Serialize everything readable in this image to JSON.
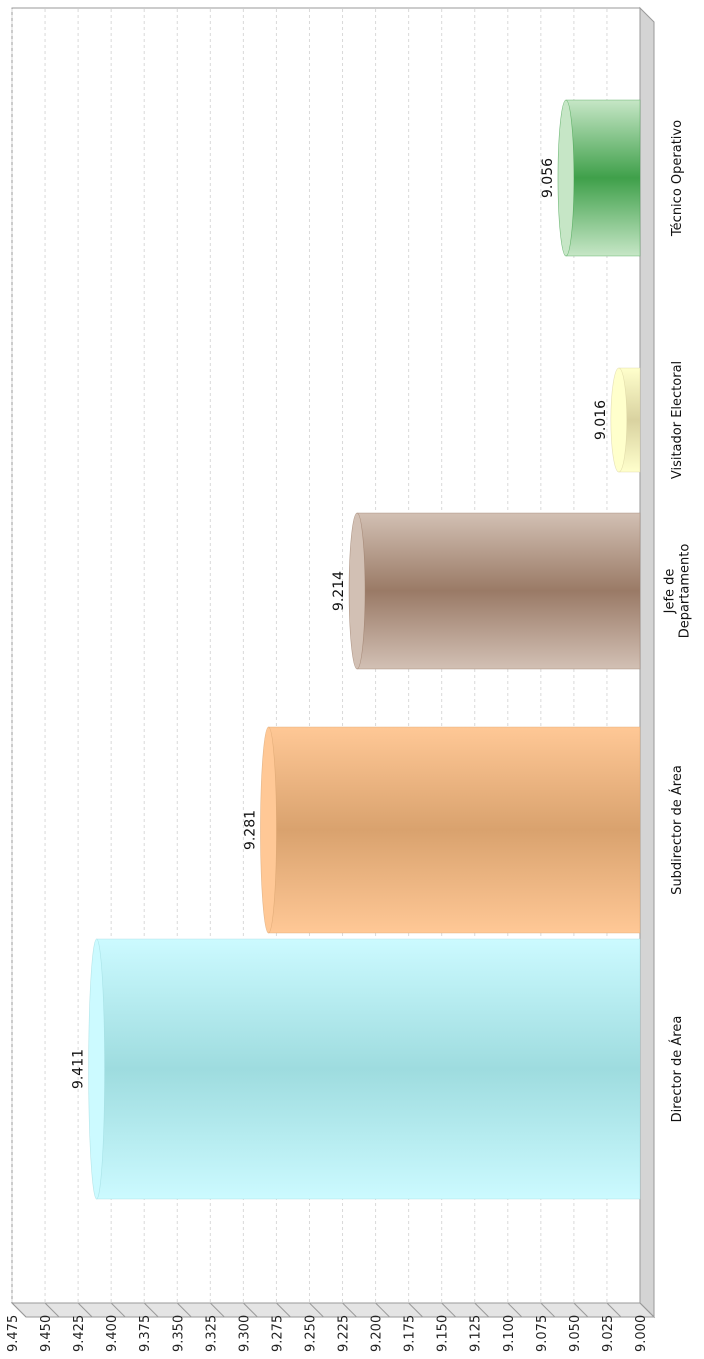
{
  "chart_data": {
    "type": "bar",
    "orientation": "vertical-rotated",
    "title": "",
    "xlabel": "",
    "ylabel": "",
    "ylim": [
      9.0,
      9.475
    ],
    "y_ticks": [
      "9.000",
      "9.025",
      "9.050",
      "9.075",
      "9.100",
      "9.125",
      "9.150",
      "9.175",
      "9.200",
      "9.225",
      "9.250",
      "9.275",
      "9.300",
      "9.325",
      "9.350",
      "9.375",
      "9.400",
      "9.425",
      "9.450",
      "9.475"
    ],
    "grid": true,
    "legend": "none",
    "categories": [
      {
        "lines": [
          "Director de Área"
        ]
      },
      {
        "lines": [
          "Subdirector de Área"
        ]
      },
      {
        "lines": [
          "Jefe de",
          "Departamento"
        ]
      },
      {
        "lines": [
          "Visitador Electoral"
        ]
      },
      {
        "lines": [
          "Técnico Operativo"
        ]
      }
    ],
    "values": [
      9.411,
      9.281,
      9.214,
      9.016,
      9.056
    ],
    "value_labels": [
      "9.411",
      "9.281",
      "9.214",
      "9.016",
      "9.056"
    ],
    "colors": {
      "Director de Área": {
        "light": "#ccfaff",
        "dark": "#9edcdf"
      },
      "Subdirector de Área": {
        "light": "#ffc896",
        "dark": "#d9a26e"
      },
      "Jefe de Departamento": {
        "light": "#d2c0b4",
        "dark": "#9a7a66"
      },
      "Visitador Electoral": {
        "light": "#ffffcc",
        "dark": "#d9d2a0"
      },
      "Técnico Operativo": {
        "light": "#c6e6c6",
        "dark": "#3fa04a"
      }
    },
    "grid_color": "#d9d9d9",
    "frame_color": "#9a9a9a",
    "wall_side_color": "#d4d4d4"
  }
}
